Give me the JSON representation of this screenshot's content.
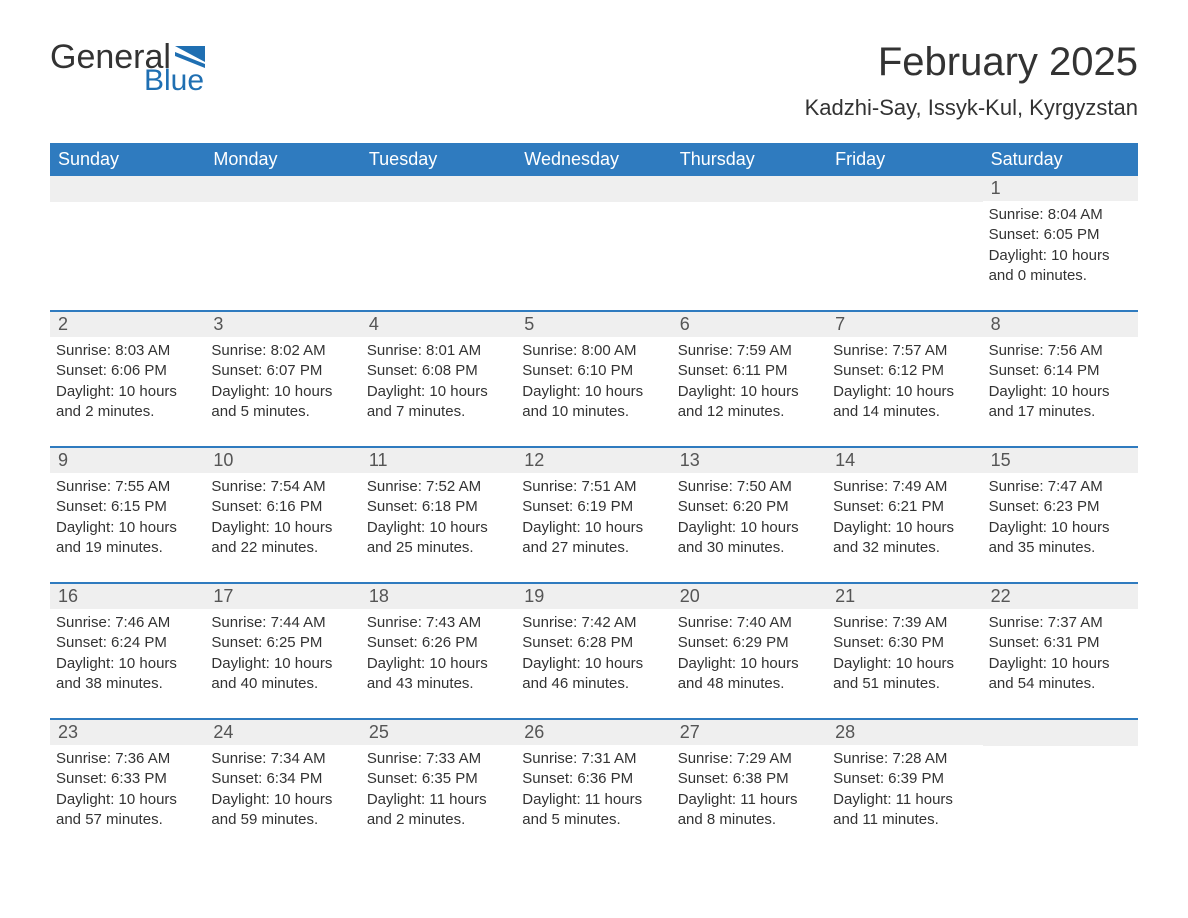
{
  "logo": {
    "text_general": "General",
    "text_blue": "Blue",
    "flag_color": "#1f6fb2"
  },
  "title": "February 2025",
  "location": "Kadzhi-Say, Issyk-Kul, Kyrgyzstan",
  "colors": {
    "header_bg": "#2f7bbf",
    "header_text": "#ffffff",
    "row_divider": "#2f7bbf",
    "day_band_bg": "#efefef",
    "text": "#333333",
    "logo_blue": "#1f6fb2",
    "background": "#ffffff"
  },
  "weekdays": [
    "Sunday",
    "Monday",
    "Tuesday",
    "Wednesday",
    "Thursday",
    "Friday",
    "Saturday"
  ],
  "weeks": [
    [
      null,
      null,
      null,
      null,
      null,
      null,
      {
        "n": "1",
        "sunrise": "Sunrise: 8:04 AM",
        "sunset": "Sunset: 6:05 PM",
        "daylight": "Daylight: 10 hours and 0 minutes."
      }
    ],
    [
      {
        "n": "2",
        "sunrise": "Sunrise: 8:03 AM",
        "sunset": "Sunset: 6:06 PM",
        "daylight": "Daylight: 10 hours and 2 minutes."
      },
      {
        "n": "3",
        "sunrise": "Sunrise: 8:02 AM",
        "sunset": "Sunset: 6:07 PM",
        "daylight": "Daylight: 10 hours and 5 minutes."
      },
      {
        "n": "4",
        "sunrise": "Sunrise: 8:01 AM",
        "sunset": "Sunset: 6:08 PM",
        "daylight": "Daylight: 10 hours and 7 minutes."
      },
      {
        "n": "5",
        "sunrise": "Sunrise: 8:00 AM",
        "sunset": "Sunset: 6:10 PM",
        "daylight": "Daylight: 10 hours and 10 minutes."
      },
      {
        "n": "6",
        "sunrise": "Sunrise: 7:59 AM",
        "sunset": "Sunset: 6:11 PM",
        "daylight": "Daylight: 10 hours and 12 minutes."
      },
      {
        "n": "7",
        "sunrise": "Sunrise: 7:57 AM",
        "sunset": "Sunset: 6:12 PM",
        "daylight": "Daylight: 10 hours and 14 minutes."
      },
      {
        "n": "8",
        "sunrise": "Sunrise: 7:56 AM",
        "sunset": "Sunset: 6:14 PM",
        "daylight": "Daylight: 10 hours and 17 minutes."
      }
    ],
    [
      {
        "n": "9",
        "sunrise": "Sunrise: 7:55 AM",
        "sunset": "Sunset: 6:15 PM",
        "daylight": "Daylight: 10 hours and 19 minutes."
      },
      {
        "n": "10",
        "sunrise": "Sunrise: 7:54 AM",
        "sunset": "Sunset: 6:16 PM",
        "daylight": "Daylight: 10 hours and 22 minutes."
      },
      {
        "n": "11",
        "sunrise": "Sunrise: 7:52 AM",
        "sunset": "Sunset: 6:18 PM",
        "daylight": "Daylight: 10 hours and 25 minutes."
      },
      {
        "n": "12",
        "sunrise": "Sunrise: 7:51 AM",
        "sunset": "Sunset: 6:19 PM",
        "daylight": "Daylight: 10 hours and 27 minutes."
      },
      {
        "n": "13",
        "sunrise": "Sunrise: 7:50 AM",
        "sunset": "Sunset: 6:20 PM",
        "daylight": "Daylight: 10 hours and 30 minutes."
      },
      {
        "n": "14",
        "sunrise": "Sunrise: 7:49 AM",
        "sunset": "Sunset: 6:21 PM",
        "daylight": "Daylight: 10 hours and 32 minutes."
      },
      {
        "n": "15",
        "sunrise": "Sunrise: 7:47 AM",
        "sunset": "Sunset: 6:23 PM",
        "daylight": "Daylight: 10 hours and 35 minutes."
      }
    ],
    [
      {
        "n": "16",
        "sunrise": "Sunrise: 7:46 AM",
        "sunset": "Sunset: 6:24 PM",
        "daylight": "Daylight: 10 hours and 38 minutes."
      },
      {
        "n": "17",
        "sunrise": "Sunrise: 7:44 AM",
        "sunset": "Sunset: 6:25 PM",
        "daylight": "Daylight: 10 hours and 40 minutes."
      },
      {
        "n": "18",
        "sunrise": "Sunrise: 7:43 AM",
        "sunset": "Sunset: 6:26 PM",
        "daylight": "Daylight: 10 hours and 43 minutes."
      },
      {
        "n": "19",
        "sunrise": "Sunrise: 7:42 AM",
        "sunset": "Sunset: 6:28 PM",
        "daylight": "Daylight: 10 hours and 46 minutes."
      },
      {
        "n": "20",
        "sunrise": "Sunrise: 7:40 AM",
        "sunset": "Sunset: 6:29 PM",
        "daylight": "Daylight: 10 hours and 48 minutes."
      },
      {
        "n": "21",
        "sunrise": "Sunrise: 7:39 AM",
        "sunset": "Sunset: 6:30 PM",
        "daylight": "Daylight: 10 hours and 51 minutes."
      },
      {
        "n": "22",
        "sunrise": "Sunrise: 7:37 AM",
        "sunset": "Sunset: 6:31 PM",
        "daylight": "Daylight: 10 hours and 54 minutes."
      }
    ],
    [
      {
        "n": "23",
        "sunrise": "Sunrise: 7:36 AM",
        "sunset": "Sunset: 6:33 PM",
        "daylight": "Daylight: 10 hours and 57 minutes."
      },
      {
        "n": "24",
        "sunrise": "Sunrise: 7:34 AM",
        "sunset": "Sunset: 6:34 PM",
        "daylight": "Daylight: 10 hours and 59 minutes."
      },
      {
        "n": "25",
        "sunrise": "Sunrise: 7:33 AM",
        "sunset": "Sunset: 6:35 PM",
        "daylight": "Daylight: 11 hours and 2 minutes."
      },
      {
        "n": "26",
        "sunrise": "Sunrise: 7:31 AM",
        "sunset": "Sunset: 6:36 PM",
        "daylight": "Daylight: 11 hours and 5 minutes."
      },
      {
        "n": "27",
        "sunrise": "Sunrise: 7:29 AM",
        "sunset": "Sunset: 6:38 PM",
        "daylight": "Daylight: 11 hours and 8 minutes."
      },
      {
        "n": "28",
        "sunrise": "Sunrise: 7:28 AM",
        "sunset": "Sunset: 6:39 PM",
        "daylight": "Daylight: 11 hours and 11 minutes."
      },
      null
    ]
  ]
}
